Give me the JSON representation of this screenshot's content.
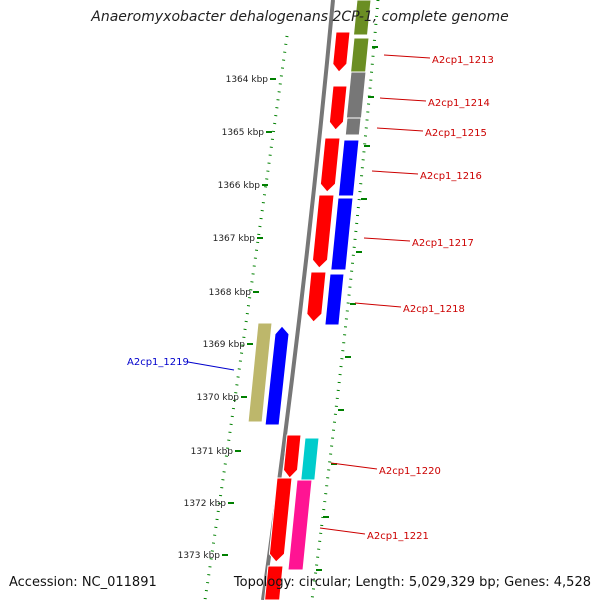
{
  "title": "Anaeromyxobacter dehalogenans 2CP-1, complete genome",
  "footer": {
    "accession": "Accession: NC_011891",
    "summary": "Topology: circular; Length: 5,029,329 bp; Genes: 4,528"
  },
  "colors": {
    "backbone": "#777777",
    "forward_cds": "#ff0000",
    "reverse_cds": "#0000ff",
    "label_forward": "#cc0000",
    "label_reverse": "#0000cc",
    "ticks": "#008000",
    "olive": "#6b8e23",
    "gray_feature": "#777777",
    "khaki": "#bdb76b",
    "cyan": "#00cccc",
    "pink": "#ff1493"
  },
  "map": {
    "axis_labels": [
      {
        "text": "1364 kbp"
      },
      {
        "text": "1365 kbp"
      },
      {
        "text": "1366 kbp"
      },
      {
        "text": "1367 kbp"
      },
      {
        "text": "1368 kbp"
      },
      {
        "text": "1369 kbp"
      },
      {
        "text": "1370 kbp"
      },
      {
        "text": "1371 kbp"
      },
      {
        "text": "1372 kbp"
      },
      {
        "text": "1373 kbp"
      }
    ],
    "gene_labels": [
      {
        "text": "A2cp1_1213",
        "strand": "forward"
      },
      {
        "text": "A2cp1_1214",
        "strand": "forward"
      },
      {
        "text": "A2cp1_1215",
        "strand": "forward"
      },
      {
        "text": "A2cp1_1216",
        "strand": "forward"
      },
      {
        "text": "A2cp1_1217",
        "strand": "forward"
      },
      {
        "text": "A2cp1_1218",
        "strand": "forward"
      },
      {
        "text": "A2cp1_1219",
        "strand": "reverse"
      },
      {
        "text": "A2cp1_1220",
        "strand": "forward"
      },
      {
        "text": "A2cp1_1221",
        "strand": "forward"
      }
    ]
  }
}
